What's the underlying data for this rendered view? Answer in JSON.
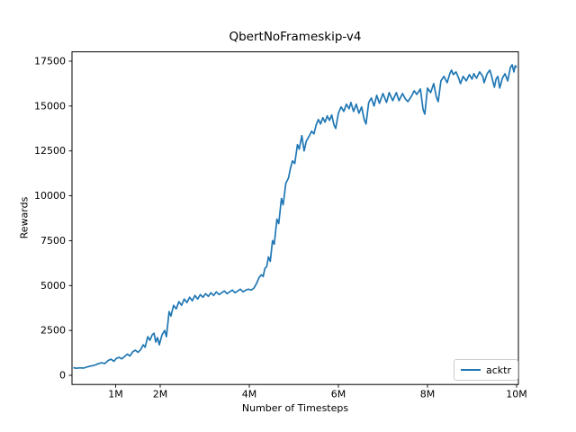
{
  "chart_data": {
    "type": "line",
    "title": "QbertNoFrameskip-v4",
    "xlabel": "Number of Timesteps",
    "ylabel": "Rewards",
    "legend": [
      "acktr"
    ],
    "legend_position": "lower right",
    "line_color": "#1f77b4",
    "background_color": "#ffffff",
    "grid": false,
    "xlim_millions": [
      0.02,
      10.04
    ],
    "ylim": [
      -510,
      18020
    ],
    "xtick_values_millions": [
      1,
      2,
      4,
      6,
      8,
      10
    ],
    "xtick_labels": [
      "1M",
      "2M",
      "4M",
      "6M",
      "8M",
      "10M"
    ],
    "ytick_values": [
      0,
      2500,
      5000,
      7500,
      10000,
      12500,
      15000,
      17500
    ],
    "ytick_labels": [
      "0",
      "2500",
      "5000",
      "7500",
      "10000",
      "12500",
      "15000",
      "17500"
    ],
    "series": [
      {
        "name": "acktr",
        "x_millions": [
          0.05,
          0.12,
          0.2,
          0.28,
          0.36,
          0.44,
          0.52,
          0.6,
          0.68,
          0.76,
          0.84,
          0.9,
          0.96,
          1.02,
          1.08,
          1.14,
          1.2,
          1.26,
          1.32,
          1.38,
          1.44,
          1.5,
          1.56,
          1.62,
          1.66,
          1.72,
          1.77,
          1.82,
          1.86,
          1.9,
          1.94,
          1.98,
          2.04,
          2.1,
          2.14,
          2.2,
          2.24,
          2.3,
          2.36,
          2.42,
          2.48,
          2.54,
          2.6,
          2.66,
          2.72,
          2.78,
          2.84,
          2.9,
          2.96,
          3.02,
          3.08,
          3.14,
          3.2,
          3.26,
          3.32,
          3.38,
          3.44,
          3.5,
          3.56,
          3.62,
          3.68,
          3.74,
          3.8,
          3.86,
          3.92,
          3.98,
          4.04,
          4.1,
          4.16,
          4.22,
          4.27,
          4.31,
          4.35,
          4.39,
          4.43,
          4.47,
          4.52,
          4.56,
          4.62,
          4.66,
          4.72,
          4.76,
          4.82,
          4.88,
          4.92,
          4.97,
          5.02,
          5.08,
          5.12,
          5.18,
          5.23,
          5.28,
          5.34,
          5.4,
          5.45,
          5.5,
          5.55,
          5.6,
          5.65,
          5.7,
          5.75,
          5.8,
          5.85,
          5.9,
          5.94,
          6.0,
          6.06,
          6.12,
          6.18,
          6.24,
          6.28,
          6.34,
          6.4,
          6.46,
          6.52,
          6.58,
          6.62,
          6.68,
          6.74,
          6.8,
          6.86,
          6.92,
          7.0,
          7.08,
          7.14,
          7.22,
          7.3,
          7.36,
          7.44,
          7.5,
          7.56,
          7.64,
          7.7,
          7.76,
          7.84,
          7.9,
          7.94,
          8.0,
          8.07,
          8.14,
          8.2,
          8.24,
          8.3,
          8.37,
          8.44,
          8.5,
          8.54,
          8.58,
          8.64,
          8.7,
          8.74,
          8.8,
          8.87,
          8.94,
          9.0,
          9.04,
          9.1,
          9.17,
          9.24,
          9.27,
          9.34,
          9.4,
          9.44,
          9.5,
          9.54,
          9.58,
          9.62,
          9.68,
          9.74,
          9.8,
          9.86,
          9.9,
          9.94,
          9.97,
          10.0
        ],
        "y": [
          430,
          390,
          420,
          400,
          470,
          520,
          560,
          640,
          700,
          660,
          840,
          900,
          780,
          950,
          1000,
          920,
          1050,
          1180,
          1080,
          1300,
          1400,
          1280,
          1420,
          1700,
          1560,
          2150,
          1950,
          2250,
          2350,
          1850,
          2100,
          1700,
          2250,
          2500,
          2150,
          3550,
          3300,
          3900,
          3700,
          4100,
          3900,
          4250,
          4050,
          4350,
          4150,
          4450,
          4250,
          4500,
          4350,
          4550,
          4400,
          4600,
          4450,
          4650,
          4500,
          4600,
          4700,
          4550,
          4650,
          4750,
          4600,
          4700,
          4800,
          4650,
          4750,
          4800,
          4750,
          4850,
          5100,
          5450,
          5600,
          5500,
          5950,
          6050,
          6600,
          6350,
          7500,
          7300,
          8700,
          8450,
          9850,
          9500,
          10700,
          11000,
          11500,
          11950,
          11800,
          12850,
          12600,
          13350,
          12500,
          13050,
          13300,
          13600,
          13450,
          13950,
          14250,
          14000,
          14350,
          14100,
          14450,
          14200,
          14500,
          13950,
          13750,
          14600,
          14950,
          14700,
          15100,
          14850,
          15200,
          14700,
          15100,
          14600,
          14950,
          14250,
          14000,
          15200,
          15450,
          15000,
          15600,
          15150,
          15700,
          15200,
          15750,
          15300,
          15750,
          15300,
          15700,
          15400,
          15250,
          15550,
          15850,
          15650,
          15950,
          14800,
          14550,
          16000,
          15750,
          16250,
          15500,
          15250,
          16400,
          16650,
          16300,
          16800,
          17000,
          16750,
          16900,
          16550,
          16250,
          16650,
          16400,
          16750,
          16500,
          16800,
          16550,
          16900,
          16650,
          16300,
          16800,
          17000,
          16650,
          16050,
          16500,
          16650,
          16000,
          16550,
          16800,
          16400,
          17150,
          17300,
          16900,
          17250,
          17150
        ]
      }
    ]
  }
}
